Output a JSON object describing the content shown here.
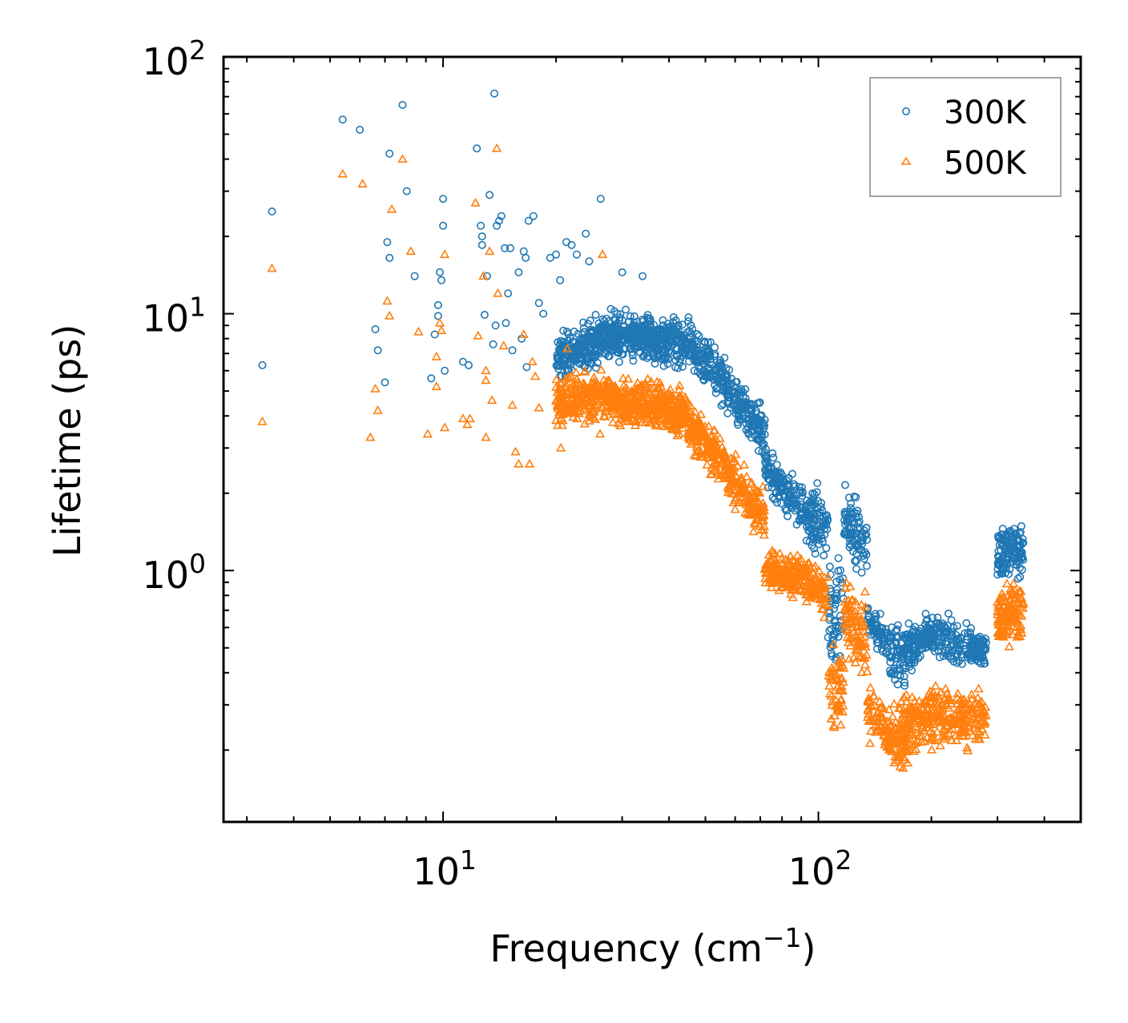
{
  "chart_data": {
    "type": "scatter",
    "title": "",
    "xlabel": "Frequency (cm",
    "xlabel_sup": "−1",
    "xlabel_end": ")",
    "ylabel": "Lifetime (ps)",
    "xscale": "log",
    "yscale": "log",
    "xlim": [
      2.6,
      500
    ],
    "ylim": [
      0.105,
      100
    ],
    "x_ticks": [
      {
        "value": 10,
        "base": "10",
        "exp": "1"
      },
      {
        "value": 100,
        "base": "10",
        "exp": "2"
      }
    ],
    "y_ticks": [
      {
        "value": 1,
        "base": "10",
        "exp": "0"
      },
      {
        "value": 10,
        "base": "10",
        "exp": "1"
      },
      {
        "value": 100,
        "base": "10",
        "exp": "2"
      }
    ],
    "legend": {
      "position": "top-right"
    },
    "series": [
      {
        "name": "300K",
        "marker": "circle",
        "color": "#1f77b4",
        "points": [
          [
            3.3,
            6.3
          ],
          [
            3.5,
            25
          ],
          [
            5.4,
            57
          ],
          [
            6.0,
            52
          ],
          [
            7.2,
            42
          ],
          [
            7.8,
            65
          ],
          [
            8.0,
            30
          ],
          [
            7.1,
            19
          ],
          [
            7.2,
            16.5
          ],
          [
            8.4,
            14
          ],
          [
            6.6,
            8.7
          ],
          [
            6.7,
            7.2
          ],
          [
            7.0,
            5.4
          ],
          [
            9.5,
            8.3
          ],
          [
            9.7,
            10.8
          ],
          [
            9.7,
            9.8
          ],
          [
            9.8,
            14.5
          ],
          [
            9.9,
            13.5
          ],
          [
            10.0,
            22
          ],
          [
            10.0,
            28
          ],
          [
            10.1,
            6.0
          ],
          [
            9.3,
            5.6
          ],
          [
            11.3,
            6.5
          ],
          [
            11.7,
            6.3
          ],
          [
            12.3,
            44
          ],
          [
            12.6,
            22
          ],
          [
            12.7,
            20
          ],
          [
            12.7,
            18.5
          ],
          [
            13.1,
            14
          ],
          [
            13.3,
            29
          ],
          [
            13.7,
            72
          ],
          [
            13.8,
            9
          ],
          [
            13.6,
            7.6
          ],
          [
            12.9,
            9.9
          ],
          [
            13.9,
            22
          ],
          [
            14.1,
            23
          ],
          [
            14.3,
            24
          ],
          [
            14.6,
            18
          ],
          [
            15.1,
            18
          ],
          [
            14.9,
            12
          ],
          [
            14.7,
            9.2
          ],
          [
            15.3,
            7.2
          ],
          [
            15.9,
            14.5
          ],
          [
            16.4,
            17.5
          ],
          [
            16.6,
            16.5
          ],
          [
            16.9,
            23
          ],
          [
            17.4,
            24
          ],
          [
            16.2,
            8
          ],
          [
            16.7,
            6.2
          ],
          [
            18.0,
            11
          ],
          [
            18.5,
            10
          ],
          [
            19.3,
            16.5
          ],
          [
            20.0,
            17
          ],
          [
            20.5,
            13.5
          ],
          [
            21.3,
            19
          ],
          [
            22.0,
            18.5
          ],
          [
            22.7,
            17
          ],
          [
            24.0,
            20.5
          ],
          [
            24.5,
            16
          ],
          [
            26.3,
            28
          ],
          [
            30.0,
            14.5
          ],
          [
            34.0,
            14
          ]
        ]
      },
      {
        "name": "500K",
        "marker": "triangle",
        "color": "#ff7f0e",
        "points": [
          [
            3.3,
            3.8
          ],
          [
            3.5,
            15
          ],
          [
            5.4,
            35
          ],
          [
            6.1,
            32
          ],
          [
            7.1,
            11.2
          ],
          [
            7.2,
            9.8
          ],
          [
            7.3,
            25.5
          ],
          [
            7.8,
            40
          ],
          [
            8.2,
            17.5
          ],
          [
            8.6,
            8.5
          ],
          [
            6.4,
            3.3
          ],
          [
            6.6,
            5.1
          ],
          [
            6.7,
            4.2
          ],
          [
            9.1,
            3.4
          ],
          [
            9.6,
            6.8
          ],
          [
            9.6,
            5.2
          ],
          [
            9.8,
            9.2
          ],
          [
            9.9,
            8.6
          ],
          [
            10.1,
            17
          ],
          [
            10.1,
            3.6
          ],
          [
            11.3,
            3.9
          ],
          [
            11.6,
            3.7
          ],
          [
            11.8,
            3.9
          ],
          [
            12.2,
            27
          ],
          [
            12.4,
            8.2
          ],
          [
            12.8,
            14
          ],
          [
            13.0,
            6.0
          ],
          [
            13.0,
            5.5
          ],
          [
            13.0,
            3.3
          ],
          [
            13.3,
            17.5
          ],
          [
            13.5,
            4.6
          ],
          [
            13.9,
            44
          ],
          [
            14.0,
            12
          ],
          [
            14.5,
            7.5
          ],
          [
            15.3,
            4.4
          ],
          [
            15.6,
            2.9
          ],
          [
            15.9,
            2.6
          ],
          [
            16.4,
            8.3
          ],
          [
            17.0,
            2.6
          ],
          [
            17.3,
            6.5
          ],
          [
            17.6,
            5.7
          ],
          [
            18.0,
            4.3
          ],
          [
            20.6,
            3.0
          ],
          [
            21.4,
            7.3
          ],
          [
            22.6,
            5.9
          ],
          [
            26.2,
            3.4
          ],
          [
            26.6,
            17
          ],
          [
            33.0,
            4.7
          ]
        ]
      }
    ],
    "dense_bands": [
      {
        "series": "300K",
        "min_x": 20,
        "max_x": 350,
        "segments": [
          {
            "x0": 20,
            "x1": 28,
            "y0": [
              5.2,
              8.8
            ],
            "y1": [
              6.2,
              10.8
            ],
            "n": 240
          },
          {
            "x0": 28,
            "x1": 45,
            "y0": [
              6.2,
              10.8
            ],
            "y1": [
              5.8,
              10.4
            ],
            "n": 380
          },
          {
            "x0": 45,
            "x1": 72,
            "y0": [
              5.8,
              10.4
            ],
            "y1": [
              2.6,
              4.6
            ],
            "n": 320
          },
          {
            "x0": 72,
            "x1": 98,
            "y0": [
              2.0,
              3.2
            ],
            "y1": [
              1.1,
              2.1
            ],
            "n": 200
          },
          {
            "x0": 98,
            "x1": 106,
            "y0": [
              1.1,
              2.4
            ],
            "y1": [
              1.0,
              2.3
            ],
            "n": 40
          },
          {
            "x0": 106,
            "x1": 117,
            "y0": [
              0.36,
              1.3
            ],
            "y1": [
              0.38,
              1.3
            ],
            "n": 55
          },
          {
            "x0": 117,
            "x1": 135,
            "y0": [
              1.1,
              2.3
            ],
            "y1": [
              0.8,
              2.0
            ],
            "n": 90
          },
          {
            "x0": 135,
            "x1": 155,
            "y0": [
              0.48,
              0.85
            ],
            "y1": [
              0.42,
              0.62
            ],
            "n": 70
          },
          {
            "x0": 155,
            "x1": 200,
            "y0": [
              0.3,
              0.66
            ],
            "y1": [
              0.45,
              0.7
            ],
            "n": 180
          },
          {
            "x0": 200,
            "x1": 280,
            "y0": [
              0.42,
              0.75
            ],
            "y1": [
              0.4,
              0.6
            ],
            "n": 180
          },
          {
            "x0": 300,
            "x1": 352,
            "y0": [
              0.8,
              1.6
            ],
            "y1": [
              0.9,
              1.7
            ],
            "n": 130
          }
        ]
      },
      {
        "series": "500K",
        "min_x": 20,
        "max_x": 350,
        "segments": [
          {
            "x0": 20,
            "x1": 28,
            "y0": [
              3.4,
              6.0
            ],
            "y1": [
              3.6,
              6.4
            ],
            "n": 240
          },
          {
            "x0": 28,
            "x1": 45,
            "y0": [
              3.4,
              6.2
            ],
            "y1": [
              3.1,
              5.6
            ],
            "n": 380
          },
          {
            "x0": 45,
            "x1": 72,
            "y0": [
              2.8,
              5.0
            ],
            "y1": [
              1.2,
              2.2
            ],
            "n": 320
          },
          {
            "x0": 72,
            "x1": 98,
            "y0": [
              0.82,
              1.3
            ],
            "y1": [
              0.68,
              1.2
            ],
            "n": 200
          },
          {
            "x0": 98,
            "x1": 106,
            "y0": [
              0.62,
              1.1
            ],
            "y1": [
              0.6,
              1.05
            ],
            "n": 40
          },
          {
            "x0": 106,
            "x1": 117,
            "y0": [
              0.2,
              0.55
            ],
            "y1": [
              0.21,
              0.55
            ],
            "n": 55
          },
          {
            "x0": 117,
            "x1": 135,
            "y0": [
              0.45,
              1.0
            ],
            "y1": [
              0.3,
              0.9
            ],
            "n": 90
          },
          {
            "x0": 135,
            "x1": 155,
            "y0": [
              0.2,
              0.42
            ],
            "y1": [
              0.18,
              0.3
            ],
            "n": 70
          },
          {
            "x0": 155,
            "x1": 200,
            "y0": [
              0.13,
              0.35
            ],
            "y1": [
              0.2,
              0.4
            ],
            "n": 180
          },
          {
            "x0": 200,
            "x1": 280,
            "y0": [
              0.17,
              0.42
            ],
            "y1": [
              0.2,
              0.36
            ],
            "n": 180
          },
          {
            "x0": 300,
            "x1": 352,
            "y0": [
              0.45,
              0.9
            ],
            "y1": [
              0.5,
              1.05
            ],
            "n": 130
          }
        ]
      }
    ]
  }
}
